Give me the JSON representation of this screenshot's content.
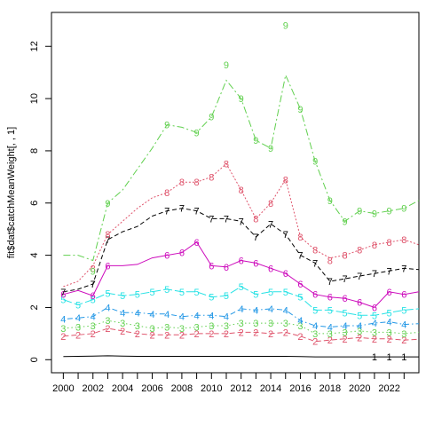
{
  "chart_data": {
    "type": "line",
    "title": "",
    "xlabel": "",
    "ylabel": "fit$dat$catchMeanWeight[, , 1]",
    "xlim": [
      1999.2,
      2024.0
    ],
    "ylim": [
      -0.5,
      13.3
    ],
    "x_ticks": [
      2000,
      2002,
      2004,
      2006,
      2008,
      2010,
      2012,
      2014,
      2016,
      2018,
      2020,
      2022
    ],
    "y_ticks": [
      0,
      2,
      4,
      6,
      8,
      10,
      12
    ],
    "x": [
      2000,
      2001,
      2002,
      2003,
      2004,
      2005,
      2006,
      2007,
      2008,
      2009,
      2010,
      2011,
      2012,
      2013,
      2014,
      2015,
      2016,
      2017,
      2018,
      2019,
      2020,
      2021,
      2022,
      2023,
      2024
    ],
    "series": [
      {
        "label": "1",
        "color": "#000000",
        "dash": "",
        "values": [
          0.12,
          0.13,
          0.14,
          0.15,
          0.14,
          0.13,
          0.13,
          0.13,
          0.13,
          0.13,
          0.13,
          0.13,
          0.13,
          0.13,
          0.13,
          0.13,
          0.12,
          0.11,
          0.11,
          0.11,
          0.11,
          0.11,
          0.11,
          0.11,
          0.11
        ],
        "marker_years": [
          2021,
          2022,
          2023
        ]
      },
      {
        "label": "2",
        "color": "#DF536B",
        "dash": "6,3",
        "values": [
          0.9,
          0.95,
          1.0,
          1.2,
          1.1,
          1.0,
          0.95,
          0.95,
          0.95,
          1.0,
          1.0,
          1.0,
          1.05,
          1.05,
          1.0,
          1.05,
          0.9,
          0.7,
          0.75,
          0.8,
          0.85,
          0.8,
          0.8,
          0.75,
          0.78
        ],
        "marker_years": [
          2000,
          2001,
          2002,
          2003,
          2004,
          2005,
          2006,
          2007,
          2008,
          2009,
          2010,
          2011,
          2012,
          2013,
          2014,
          2015,
          2016,
          2017,
          2018,
          2019,
          2020,
          2021,
          2022,
          2023
        ]
      },
      {
        "label": "3",
        "color": "#61D04F",
        "dash": "1.5,3",
        "values": [
          1.2,
          1.25,
          1.3,
          1.5,
          1.4,
          1.3,
          1.2,
          1.25,
          1.2,
          1.25,
          1.3,
          1.3,
          1.4,
          1.4,
          1.4,
          1.4,
          1.3,
          1.0,
          1.0,
          1.05,
          1.1,
          1.05,
          1.05,
          1.0,
          1.05
        ],
        "marker_years": [
          2000,
          2001,
          2002,
          2003,
          2004,
          2005,
          2006,
          2007,
          2008,
          2009,
          2010,
          2011,
          2012,
          2013,
          2014,
          2015,
          2016,
          2017,
          2018,
          2019,
          2020,
          2021,
          2022,
          2023
        ]
      },
      {
        "label": "4",
        "color": "#2297E6",
        "dash": "1.5,3,6,3",
        "values": [
          1.55,
          1.6,
          1.65,
          2.0,
          1.8,
          1.8,
          1.75,
          1.75,
          1.65,
          1.7,
          1.7,
          1.65,
          1.95,
          1.9,
          1.95,
          1.9,
          1.5,
          1.3,
          1.25,
          1.3,
          1.3,
          1.4,
          1.45,
          1.35,
          1.38
        ],
        "marker_years": [
          2000,
          2001,
          2002,
          2003,
          2004,
          2005,
          2006,
          2007,
          2008,
          2009,
          2010,
          2011,
          2012,
          2013,
          2014,
          2015,
          2016,
          2017,
          2018,
          2019,
          2020,
          2021,
          2022,
          2023
        ]
      },
      {
        "label": "5",
        "color": "#28E2E5",
        "dash": "10,3",
        "values": [
          2.3,
          2.1,
          2.3,
          2.55,
          2.45,
          2.5,
          2.6,
          2.7,
          2.6,
          2.6,
          2.4,
          2.45,
          2.8,
          2.5,
          2.6,
          2.6,
          2.4,
          1.9,
          1.9,
          1.8,
          1.7,
          1.7,
          1.8,
          1.9,
          1.95
        ],
        "marker_years": [
          2000,
          2001,
          2002,
          2003,
          2004,
          2005,
          2006,
          2007,
          2008,
          2009,
          2010,
          2011,
          2012,
          2013,
          2014,
          2015,
          2016,
          2017,
          2018,
          2019,
          2020,
          2021,
          2022,
          2023
        ]
      },
      {
        "label": "6",
        "color": "#CD0BBC",
        "dash": "",
        "values": [
          2.5,
          2.65,
          2.45,
          3.6,
          3.6,
          3.65,
          3.9,
          4.0,
          4.1,
          4.5,
          3.6,
          3.55,
          3.8,
          3.7,
          3.5,
          3.3,
          2.9,
          2.5,
          2.4,
          2.35,
          2.2,
          2.0,
          2.6,
          2.5,
          2.6
        ],
        "marker_years": [
          2000,
          2002,
          2003,
          2007,
          2008,
          2009,
          2010,
          2011,
          2012,
          2013,
          2014,
          2015,
          2016,
          2017,
          2018,
          2019,
          2020,
          2021,
          2022,
          2023
        ]
      },
      {
        "label": "7",
        "color": "#000000",
        "dash": "5,3",
        "values": [
          2.6,
          2.7,
          2.9,
          4.6,
          4.9,
          5.1,
          5.5,
          5.7,
          5.8,
          5.7,
          5.4,
          5.4,
          5.3,
          4.7,
          5.2,
          4.8,
          4.0,
          3.7,
          3.0,
          3.1,
          3.2,
          3.3,
          3.4,
          3.5,
          3.45
        ],
        "marker_years": [
          2000,
          2002,
          2003,
          2007,
          2008,
          2009,
          2010,
          2011,
          2012,
          2013,
          2014,
          2015,
          2016,
          2017,
          2018,
          2019,
          2020,
          2021,
          2022,
          2023
        ]
      },
      {
        "label": "8",
        "color": "#DF536B",
        "dash": "2,2",
        "values": [
          2.8,
          3.0,
          3.6,
          4.8,
          5.3,
          5.8,
          6.2,
          6.4,
          6.8,
          6.8,
          7.0,
          7.5,
          6.5,
          5.4,
          6.0,
          6.9,
          4.7,
          4.2,
          3.9,
          4.0,
          4.2,
          4.4,
          4.5,
          4.6,
          4.4
        ],
        "marker_years": [
          2002,
          2003,
          2007,
          2008,
          2009,
          2010,
          2011,
          2012,
          2013,
          2014,
          2015,
          2016,
          2017,
          2018,
          2019,
          2020,
          2021,
          2022,
          2023
        ]
      },
      {
        "label": "9",
        "color": "#61D04F",
        "dash": "8,3,2,3",
        "values": [
          4.0,
          4.0,
          3.8,
          6.0,
          6.5,
          7.3,
          8.1,
          9.0,
          8.9,
          8.7,
          9.3,
          10.7,
          10.0,
          8.4,
          8.1,
          10.9,
          9.6,
          7.6,
          6.1,
          5.3,
          5.7,
          5.6,
          5.7,
          5.8,
          6.1
        ],
        "marker_years": [
          2002,
          2003,
          2007,
          2009,
          2010,
          2011,
          2012,
          2013,
          2014,
          2015,
          2016,
          2017,
          2018,
          2019,
          2020,
          2021,
          2022,
          2023
        ]
      }
    ],
    "marker_overrides": {
      "9": {
        "2015": 12.8,
        "2011": 11.3,
        "2002": 3.4
      },
      "8": {
        "2002": 3.5,
        "2018": 3.8
      }
    }
  }
}
